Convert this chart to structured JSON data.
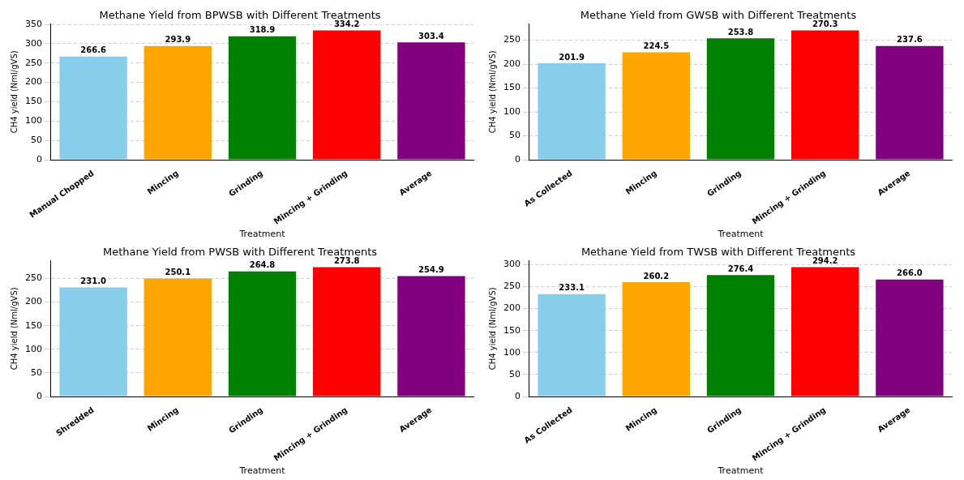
{
  "chart_data": [
    {
      "type": "bar",
      "title": "Methane Yield from BPWSB with Different Treatments",
      "xlabel": "Treatment",
      "ylabel": "CH4 yield (Nml/gVS)",
      "categories": [
        "Manual Chopped",
        "Mincing",
        "Grinding",
        "Mincing + Grinding",
        "Average"
      ],
      "values": [
        266.6,
        293.9,
        318.9,
        334.2,
        303.4
      ],
      "value_labels": [
        "266.6",
        "293.9",
        "318.9",
        "334.2",
        "303.4"
      ],
      "colors": [
        "#87ceeb",
        "#ffa500",
        "#008000",
        "#ff0000",
        "#800080"
      ],
      "ylim": [
        0,
        350.9
      ],
      "yticks": [
        0,
        50,
        100,
        150,
        200,
        250,
        300,
        350
      ],
      "grid": "y",
      "legend": false
    },
    {
      "type": "bar",
      "title": "Methane Yield from GWSB with Different Treatments",
      "xlabel": "Treatment",
      "ylabel": "CH4 yield (Nml/gVS)",
      "categories": [
        "As Collected",
        "Mincing",
        "Grinding",
        "Mincing + Grinding",
        "Average"
      ],
      "values": [
        201.9,
        224.5,
        253.8,
        270.3,
        237.6
      ],
      "value_labels": [
        "201.9",
        "224.5",
        "253.8",
        "270.3",
        "237.6"
      ],
      "colors": [
        "#87ceeb",
        "#ffa500",
        "#008000",
        "#ff0000",
        "#800080"
      ],
      "ylim": [
        0,
        283.8
      ],
      "yticks": [
        0,
        50,
        100,
        150,
        200,
        250
      ],
      "grid": "y",
      "legend": false
    },
    {
      "type": "bar",
      "title": "Methane Yield from PWSB with Different Treatments",
      "xlabel": "Treatment",
      "ylabel": "CH4 yield (Nml/gVS)",
      "categories": [
        "Shredded",
        "Mincing",
        "Grinding",
        "Mincing + Grinding",
        "Average"
      ],
      "values": [
        231.0,
        250.1,
        264.8,
        273.8,
        254.9
      ],
      "value_labels": [
        "231.0",
        "250.1",
        "264.8",
        "273.8",
        "254.9"
      ],
      "colors": [
        "#87ceeb",
        "#ffa500",
        "#008000",
        "#ff0000",
        "#800080"
      ],
      "ylim": [
        0,
        287.5
      ],
      "yticks": [
        0,
        50,
        100,
        150,
        200,
        250
      ],
      "grid": "y",
      "legend": false
    },
    {
      "type": "bar",
      "title": "Methane Yield from TWSB with Different Treatments",
      "xlabel": "Treatment",
      "ylabel": "CH4 yield (Nml/gVS)",
      "categories": [
        "As Collected",
        "Mincing",
        "Grinding",
        "Mincing + Grinding",
        "Average"
      ],
      "values": [
        233.1,
        260.2,
        276.4,
        294.2,
        266.0
      ],
      "value_labels": [
        "233.1",
        "260.2",
        "276.4",
        "294.2",
        "266.0"
      ],
      "colors": [
        "#87ceeb",
        "#ffa500",
        "#008000",
        "#ff0000",
        "#800080"
      ],
      "ylim": [
        0,
        308.9
      ],
      "yticks": [
        0,
        50,
        100,
        150,
        200,
        250,
        300
      ],
      "grid": "y",
      "legend": false
    }
  ]
}
